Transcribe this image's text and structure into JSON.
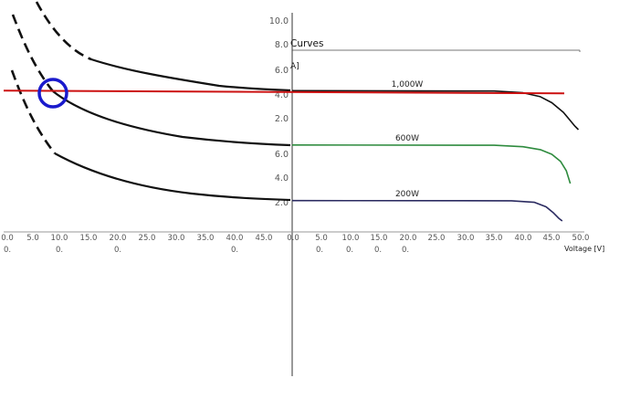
{
  "chart_data": {
    "type": "line",
    "title": "Curves",
    "ylabel": "A]",
    "xlabel": "Voltage [V]",
    "colors": {
      "irradiance_high": "#111111",
      "irradiance_mid": "#2e8b3e",
      "irradiance_low": "#2a2a60",
      "reference": "#cc1111",
      "marker": "#1a1acc",
      "mirrored": "#111111"
    },
    "upper_yticks": [
      "10.0",
      "8.0",
      "6.0",
      "4.0",
      "2.0"
    ],
    "middle_yticks": [
      "6.0",
      "4.0",
      "2.0"
    ],
    "xticks_right": [
      "0.0",
      "5.0",
      "10.0",
      "15.0",
      "20.0",
      "25.0",
      "30.0",
      "35.0",
      "40.0",
      "45.0",
      "50.0"
    ],
    "xticks_left": [
      "0.0",
      "5.0",
      "10.0",
      "15.0",
      "20.0",
      "25.0",
      "30.0",
      "35.0",
      "40.0",
      "45.0"
    ],
    "xsub_right": [
      "0.",
      "0.",
      "0.",
      "0."
    ],
    "xsub_left": [
      "0.",
      "0.",
      "0.",
      "0."
    ],
    "series": [
      {
        "name": "1,000W",
        "x": [
          0,
          35,
          40,
          43,
          45,
          47,
          48,
          49,
          49.6
        ],
        "y": [
          4.5,
          4.45,
          4.25,
          3.8,
          3.1,
          2.0,
          1.2,
          0.4,
          0
        ]
      },
      {
        "name": "600W",
        "x": [
          0,
          35,
          40,
          43,
          45,
          46.5,
          47.5,
          48.2
        ],
        "y": [
          6.6,
          6.55,
          6.3,
          5.8,
          5.0,
          3.8,
          2.2,
          0
        ]
      },
      {
        "name": "200W",
        "x": [
          0,
          38,
          42,
          44,
          45.3,
          46.2,
          46.8
        ],
        "y": [
          2.3,
          2.28,
          2.1,
          1.6,
          0.9,
          0.3,
          0
        ]
      }
    ],
    "reference_line_y": 4.5
  }
}
